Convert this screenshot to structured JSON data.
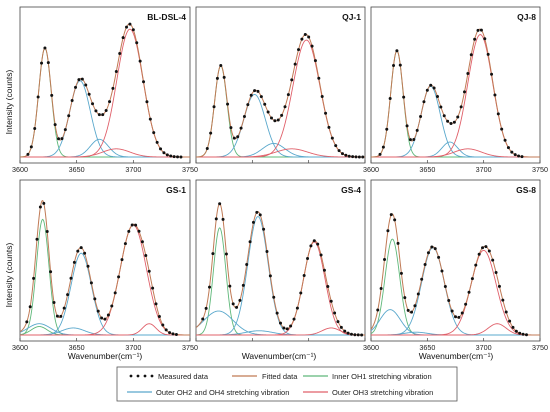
{
  "colors": {
    "measured": "#111111",
    "fitted": "#c07a55",
    "inner_oh1": "#5fb87a",
    "outer_oh2_oh4": "#5aa8cc",
    "outer_oh3": "#e0606a"
  },
  "legend": {
    "measured": "Measured data",
    "fitted": "Fitted data",
    "inner_oh1": "Inner OH1 stretching vibration",
    "outer_oh2_oh4": "Outer OH2 and OH4 stretching vibration",
    "outer_oh3": "Outer OH3 stretching vibration"
  },
  "axis_labels": {
    "y": "Intensity (counts)",
    "x": "Wavenumber(cm⁻¹)"
  },
  "chart_data": [
    {
      "type": "line",
      "title": "BL-DSL-4",
      "xlim": [
        3600,
        3750
      ],
      "xticks": [
        "3600",
        "3650",
        "3700",
        "3750"
      ],
      "show_xticks": true,
      "measured_range": [
        3607,
        3743
      ],
      "measured_step": 3,
      "peaks": [
        {
          "component": "inner_oh1",
          "center": 3622,
          "height": 0.8,
          "width": 5.5
        },
        {
          "component": "outer_oh2_oh4",
          "center": 3653,
          "height": 0.56,
          "width": 9.0
        },
        {
          "component": "outer_oh2_oh4",
          "center": 3670,
          "height": 0.13,
          "width": 8.0
        },
        {
          "component": "outer_oh3",
          "center": 3697,
          "height": 0.94,
          "width": 11.5
        },
        {
          "component": "outer_oh3",
          "center": 3685,
          "height": 0.06,
          "width": 12.0
        }
      ]
    },
    {
      "type": "line",
      "title": "QJ-1",
      "xlim": [
        3600,
        3750
      ],
      "xticks": [
        "3600",
        "3650",
        "3700",
        "3750"
      ],
      "show_xticks": false,
      "measured_range": [
        3610,
        3748
      ],
      "measured_step": 3,
      "peaks": [
        {
          "component": "inner_oh1",
          "center": 3622,
          "height": 0.67,
          "width": 5.5
        },
        {
          "component": "outer_oh2_oh4",
          "center": 3652,
          "height": 0.46,
          "width": 9.5
        },
        {
          "component": "outer_oh2_oh4",
          "center": 3669,
          "height": 0.1,
          "width": 10.0
        },
        {
          "component": "outer_oh3",
          "center": 3698,
          "height": 0.86,
          "width": 12.0
        },
        {
          "component": "outer_oh3",
          "center": 3685,
          "height": 0.06,
          "width": 14.0
        }
      ]
    },
    {
      "type": "line",
      "title": "QJ-8",
      "xlim": [
        3600,
        3750
      ],
      "xticks": [
        "3600",
        "3650",
        "3700",
        "3750"
      ],
      "show_xticks": true,
      "measured_range": [
        3608,
        3734
      ],
      "measured_step": 3,
      "peaks": [
        {
          "component": "inner_oh1",
          "center": 3623,
          "height": 0.78,
          "width": 5.5
        },
        {
          "component": "outer_oh2_oh4",
          "center": 3653,
          "height": 0.52,
          "width": 8.5
        },
        {
          "component": "outer_oh2_oh4",
          "center": 3670,
          "height": 0.11,
          "width": 7.0
        },
        {
          "component": "outer_oh3",
          "center": 3697,
          "height": 0.9,
          "width": 11.0
        },
        {
          "component": "outer_oh3",
          "center": 3686,
          "height": 0.06,
          "width": 12.0
        }
      ]
    },
    {
      "type": "line",
      "title": "GS-1",
      "xlim": [
        3600,
        3750
      ],
      "xticks": [
        "3600",
        "3650",
        "3700",
        "3750"
      ],
      "show_xticks": true,
      "measured_range": [
        3606,
        3738
      ],
      "measured_step": 3,
      "peaks": [
        {
          "component": "inner_oh1",
          "center": 3620,
          "height": 0.82,
          "width": 5.5
        },
        {
          "component": "inner_oh1",
          "center": 3617,
          "height": 0.06,
          "width": 7.0
        },
        {
          "component": "outer_oh2_oh4",
          "center": 3654,
          "height": 0.58,
          "width": 9.0
        },
        {
          "component": "outer_oh2_oh4",
          "center": 3617,
          "height": 0.08,
          "width": 10.0
        },
        {
          "component": "outer_oh2_oh4",
          "center": 3647,
          "height": 0.05,
          "width": 10.0
        },
        {
          "component": "outer_oh3",
          "center": 3700,
          "height": 0.78,
          "width": 11.5
        },
        {
          "component": "outer_oh3",
          "center": 3714,
          "height": 0.08,
          "width": 6.0
        }
      ]
    },
    {
      "type": "line",
      "title": "GS-4",
      "xlim": [
        3600,
        3750
      ],
      "xticks": [
        "3600",
        "3650",
        "3700",
        "3750"
      ],
      "show_xticks": false,
      "measured_range": [
        3606,
        3748
      ],
      "measured_step": 3,
      "peaks": [
        {
          "component": "inner_oh1",
          "center": 3621,
          "height": 0.76,
          "width": 5.5
        },
        {
          "component": "outer_oh2_oh4",
          "center": 3620,
          "height": 0.17,
          "width": 13.0
        },
        {
          "component": "outer_oh2_oh4",
          "center": 3655,
          "height": 0.84,
          "width": 9.0
        },
        {
          "component": "outer_oh2_oh4",
          "center": 3656,
          "height": 0.03,
          "width": 12.0
        },
        {
          "component": "outer_oh3",
          "center": 3705,
          "height": 0.66,
          "width": 9.5
        },
        {
          "component": "outer_oh3",
          "center": 3720,
          "height": 0.05,
          "width": 8.0
        }
      ]
    },
    {
      "type": "line",
      "title": "GS-8",
      "xlim": [
        3600,
        3750
      ],
      "xticks": [
        "3600",
        "3650",
        "3700",
        "3750"
      ],
      "show_xticks": true,
      "measured_range": [
        3606,
        3738
      ],
      "measured_step": 3,
      "peaks": [
        {
          "component": "inner_oh1",
          "center": 3619,
          "height": 0.68,
          "width": 6.5
        },
        {
          "component": "outer_oh2_oh4",
          "center": 3617,
          "height": 0.18,
          "width": 9.0
        },
        {
          "component": "outer_oh2_oh4",
          "center": 3655,
          "height": 0.62,
          "width": 10.0
        },
        {
          "component": "outer_oh2_oh4",
          "center": 3640,
          "height": 0.02,
          "width": 10.0
        },
        {
          "component": "outer_oh3",
          "center": 3700,
          "height": 0.6,
          "width": 11.0
        },
        {
          "component": "outer_oh3",
          "center": 3712,
          "height": 0.08,
          "width": 8.0
        }
      ]
    }
  ]
}
